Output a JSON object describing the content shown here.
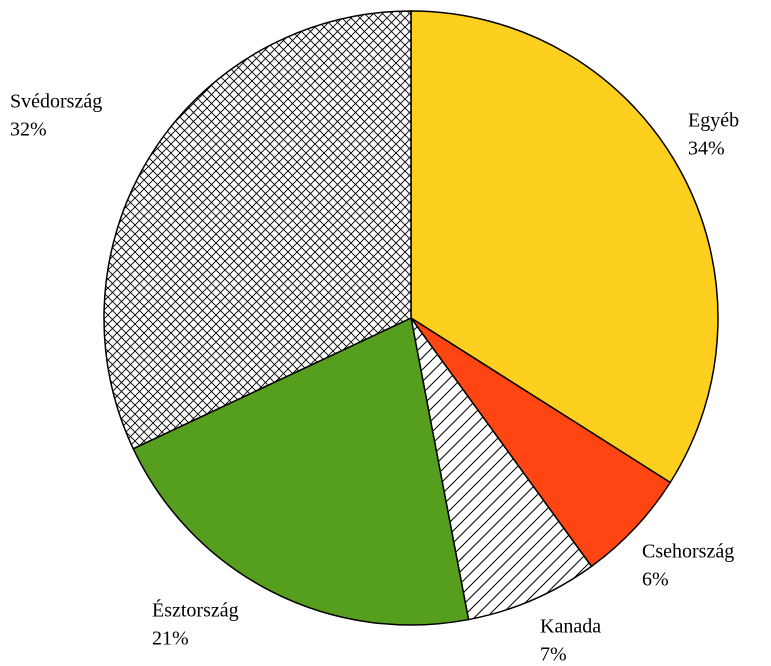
{
  "chart_data": {
    "type": "pie",
    "categories": [
      "Egyéb",
      "Csehország",
      "Kanada",
      "Észtország",
      "Svédország"
    ],
    "values": [
      34,
      6,
      7,
      21,
      32
    ],
    "value_labels": [
      "34%",
      "6%",
      "7%",
      "21%",
      "32%"
    ],
    "colors": [
      "#fdd020",
      "#ff4512",
      "#000000",
      "#569e1e",
      "#8b1a1a"
    ],
    "hatch": [
      "none",
      "none",
      "diagonal",
      "none",
      "crosshatch"
    ]
  }
}
